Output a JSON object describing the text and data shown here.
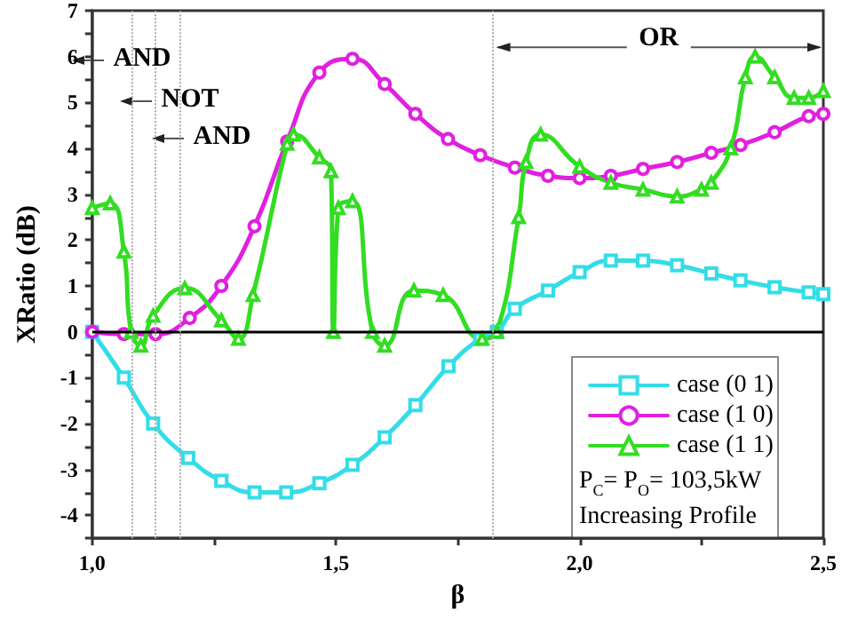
{
  "chart_data": {
    "type": "line",
    "xlabel": "β",
    "ylabel": "XRatio (dB)",
    "xlim": [
      1.0,
      2.5
    ],
    "xticks": [
      {
        "value": 1.0,
        "label": "1,0"
      },
      {
        "value": 1.25,
        "label": null
      },
      {
        "value": 1.5,
        "label": "1,5"
      },
      {
        "value": 1.75,
        "label": null
      },
      {
        "value": 2.0,
        "label": "2,0"
      },
      {
        "value": 2.25,
        "label": null
      },
      {
        "value": 2.5,
        "label": "2,5"
      }
    ],
    "ylim": [
      -4.5,
      7
    ],
    "yticks": [
      {
        "value": -4.5,
        "label": null
      },
      -4,
      {
        "value": -3.5,
        "label": null
      },
      -3,
      {
        "value": -2.5,
        "label": null
      },
      -2,
      {
        "value": -1.5,
        "label": null
      },
      -1,
      {
        "value": -0.5,
        "label": null
      },
      0,
      {
        "value": 0.5,
        "label": null
      },
      1,
      {
        "value": 1.5,
        "label": null
      },
      2,
      {
        "value": 2.5,
        "label": null
      },
      3,
      {
        "value": 3.5,
        "label": null
      },
      4,
      {
        "value": 4.5,
        "label": null
      },
      5,
      {
        "value": 5.5,
        "label": null
      },
      6,
      {
        "value": 6.5,
        "label": null
      },
      7
    ],
    "grid": false,
    "legend": "bottom right",
    "series": [
      {
        "name": "case (0 1)",
        "color": "#33dde8",
        "marker": "square",
        "x": [
          1.0,
          1.065,
          1.125,
          1.197,
          1.265,
          1.333,
          1.398,
          1.466,
          1.534,
          1.6,
          1.663,
          1.731,
          1.796,
          1.83,
          1.867,
          1.935,
          2.0,
          2.064,
          2.13,
          2.2,
          2.27,
          2.33,
          2.4,
          2.47,
          2.5
        ],
        "values": [
          0,
          -1,
          -2,
          -2.75,
          -3.25,
          -3.5,
          -3.5,
          -3.3,
          -2.9,
          -2.3,
          -1.6,
          -0.75,
          -0.15,
          0,
          0.5,
          0.9,
          1.3,
          1.55,
          1.55,
          1.45,
          1.27,
          1.12,
          0.97,
          0.86,
          0.82
        ]
      },
      {
        "name": "case (1 0)",
        "color": "#e020e0",
        "marker": "circle",
        "x": [
          1.0,
          1.065,
          1.13,
          1.2,
          1.265,
          1.333,
          1.4,
          1.466,
          1.534,
          1.6,
          1.663,
          1.73,
          1.796,
          1.867,
          1.935,
          2.0,
          2.064,
          2.13,
          2.2,
          2.27,
          2.33,
          2.4,
          2.47,
          2.5
        ],
        "values": [
          0,
          -0.05,
          -0.05,
          0.3,
          1.0,
          2.3,
          4.15,
          5.65,
          5.95,
          5.4,
          4.75,
          4.2,
          3.85,
          3.58,
          3.4,
          3.35,
          3.4,
          3.55,
          3.7,
          3.9,
          4.07,
          4.35,
          4.7,
          4.75
        ]
      },
      {
        "name": "case (1 1)",
        "color": "#33dd22",
        "marker": "triangle",
        "x": [
          1.0,
          1.037,
          1.065,
          1.08,
          1.1,
          1.125,
          1.19,
          1.265,
          1.3,
          1.33,
          1.4,
          1.413,
          1.466,
          1.49,
          1.495,
          1.505,
          1.534,
          1.575,
          1.6,
          1.66,
          1.72,
          1.8,
          1.83,
          1.875,
          1.89,
          1.92,
          2.0,
          2.064,
          2.13,
          2.2,
          2.25,
          2.27,
          2.31,
          2.34,
          2.36,
          2.4,
          2.44,
          2.47,
          2.5
        ],
        "values": [
          2.7,
          2.8,
          1.75,
          0,
          -0.3,
          0.35,
          0.95,
          0.25,
          -0.15,
          0.8,
          4.1,
          4.3,
          3.8,
          3.5,
          0,
          2.7,
          2.85,
          0,
          -0.3,
          0.9,
          0.8,
          -0.15,
          0,
          2.5,
          3.7,
          4.3,
          3.6,
          3.25,
          3.1,
          2.95,
          3.1,
          3.25,
          4.0,
          5.55,
          6.0,
          5.55,
          5.1,
          5.1,
          5.25
        ]
      }
    ],
    "ref_lines": [
      {
        "axis": "y",
        "value": 0,
        "color": "#000000",
        "line_style": "solid"
      },
      {
        "axis": "x",
        "value": 1.085,
        "color": "#aaaaaa",
        "line_style": "dotted"
      },
      {
        "axis": "x",
        "value": 1.133,
        "color": "#aaaaaa",
        "line_style": "dotted"
      },
      {
        "axis": "x",
        "value": 1.175,
        "color": "#aaaaaa",
        "line_style": "dotted"
      },
      {
        "axis": "x",
        "value": 1.825,
        "color": "#aaaaaa",
        "line_style": "dotted"
      }
    ],
    "annotations": [
      "AND",
      "NOT",
      "AND",
      {
        "text": "OR",
        "x": 1.825,
        "y": 6.2
      },
      "P$_{C}$= P$_{O}$= 103,5kW",
      "Increasing Profile"
    ]
  }
}
